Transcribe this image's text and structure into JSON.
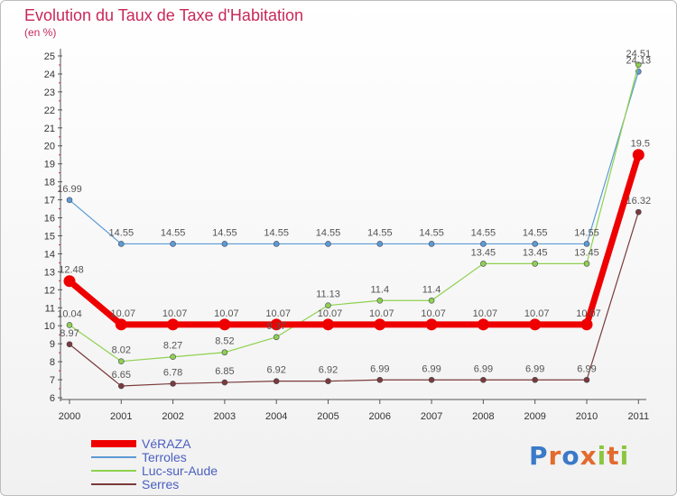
{
  "title": "Evolution du Taux de Taxe d'Habitation",
  "subtitle": "(en %)",
  "logo": {
    "text": "Proxiti",
    "letter_colors": [
      "#3b79c9",
      "#e36a2e",
      "#3b79c9",
      "#e36a2e",
      "#8cc63f",
      "#e36a2e",
      "#8cc63f"
    ]
  },
  "chart_data": {
    "type": "line",
    "title": "Evolution du Taux de Taxe d'Habitation",
    "ylabel": "(en %)",
    "xlabel": "",
    "x": [
      "2000",
      "2001",
      "2002",
      "2003",
      "2004",
      "2005",
      "2006",
      "2007",
      "2008",
      "2009",
      "2010",
      "2011"
    ],
    "ylim": [
      6,
      25
    ],
    "yticks": [
      6,
      7,
      8,
      9,
      10,
      11,
      12,
      13,
      14,
      15,
      16,
      17,
      18,
      19,
      20,
      21,
      22,
      23,
      24,
      25
    ],
    "grid": false,
    "legend_position": "bottom-left",
    "series": [
      {
        "name": "VéRAZA",
        "color": "#ee0000",
        "emphasis": true,
        "values": [
          12.48,
          10.07,
          10.07,
          10.07,
          10.07,
          10.07,
          10.07,
          10.07,
          10.07,
          10.07,
          10.07,
          19.5
        ],
        "labels": [
          "12.48",
          "10.07",
          "10.07",
          "10.07",
          "10.07",
          "10.07",
          "10.07",
          "10.07",
          "10.07",
          "10.07",
          "10.07",
          "19.5"
        ]
      },
      {
        "name": "Terroles",
        "color": "#5b9bd5",
        "emphasis": false,
        "values": [
          16.99,
          14.55,
          14.55,
          14.55,
          14.55,
          14.55,
          14.55,
          14.55,
          14.55,
          14.55,
          14.55,
          24.13
        ],
        "labels": [
          "16.99",
          "14.55",
          "14.55",
          "14.55",
          "14.55",
          "14.55",
          "14.55",
          "14.55",
          "14.55",
          "14.55",
          "14.55",
          "24.13"
        ]
      },
      {
        "name": "Luc-sur-Aude",
        "color": "#8fd14f",
        "emphasis": false,
        "values": [
          10.04,
          8.02,
          8.27,
          8.52,
          9.37,
          11.13,
          11.4,
          11.4,
          13.45,
          13.45,
          13.45,
          24.51
        ],
        "labels": [
          "10.04",
          "8.02",
          "8.27",
          "8.52",
          "9.37",
          "11.13",
          "11.4",
          "11.4",
          "13.45",
          "13.45",
          "13.45",
          "24.51"
        ]
      },
      {
        "name": "Serres",
        "color": "#7b3a3a",
        "emphasis": false,
        "values": [
          8.97,
          6.65,
          6.78,
          6.85,
          6.92,
          6.92,
          6.99,
          6.99,
          6.99,
          6.99,
          6.99,
          16.32
        ],
        "labels": [
          "8.97",
          "6.65",
          "6.78",
          "6.85",
          "6.92",
          "6.92",
          "6.99",
          "6.99",
          "6.99",
          "6.99",
          "6.99",
          "16.32"
        ]
      }
    ]
  }
}
